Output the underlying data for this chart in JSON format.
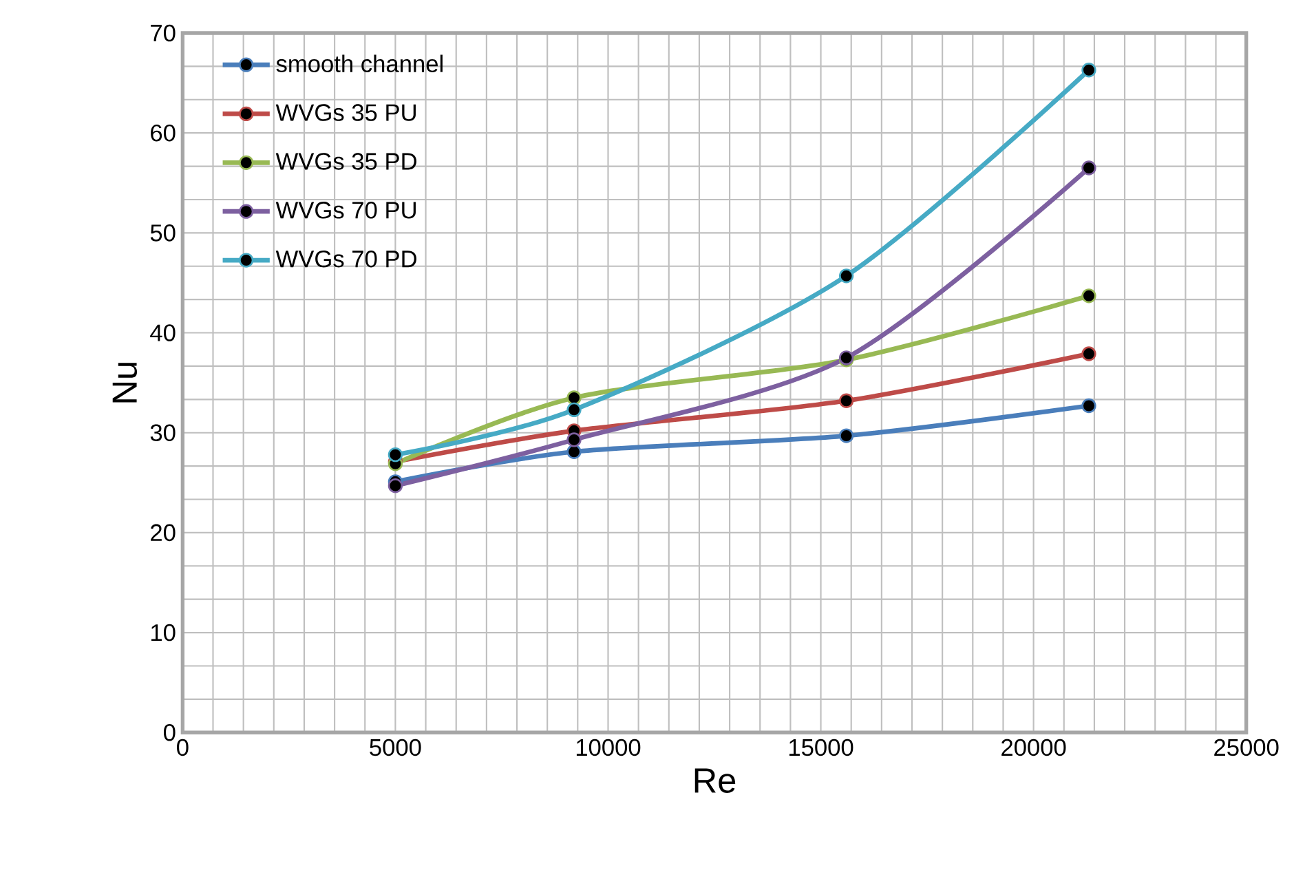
{
  "chart_data": {
    "type": "line",
    "xlabel": "Re",
    "ylabel": "Nu",
    "x": [
      5000,
      9200,
      15600,
      21300
    ],
    "series": [
      {
        "name": "smooth channel",
        "color": "#4a7ebb",
        "values": [
          25.1,
          28.1,
          29.7,
          32.7
        ]
      },
      {
        "name": "WVGs 35 PU",
        "color": "#be4b48",
        "values": [
          27.1,
          30.2,
          33.2,
          37.9
        ]
      },
      {
        "name": "WVGs 35 PD",
        "color": "#98b954",
        "values": [
          26.9,
          33.5,
          37.3,
          43.7
        ]
      },
      {
        "name": "WVGs 70 PU",
        "color": "#7d60a0",
        "values": [
          24.7,
          29.3,
          37.5,
          56.5
        ]
      },
      {
        "name": "WVGs 70 PD",
        "color": "#46aac5",
        "values": [
          27.8,
          32.3,
          45.7,
          66.3
        ]
      }
    ],
    "xlim": [
      0,
      25000
    ],
    "xticks": [
      0,
      5000,
      10000,
      15000,
      20000,
      25000
    ],
    "ylim": [
      0,
      70
    ],
    "yticks": [
      0,
      10,
      20,
      30,
      40,
      50,
      60,
      70
    ],
    "grid": true,
    "legend": "top left",
    "marker": "circle",
    "line_style": "solid"
  }
}
